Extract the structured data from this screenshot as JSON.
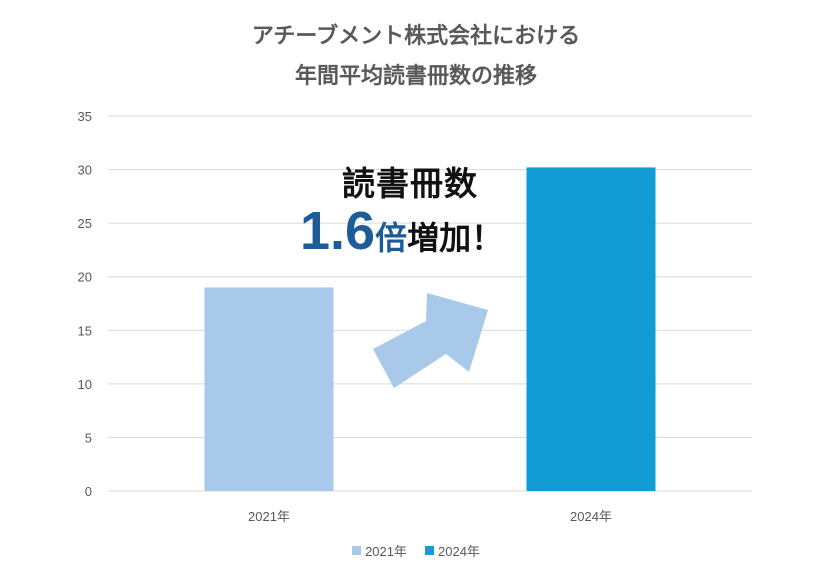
{
  "title": {
    "line1": "アチーブメント株式会社における",
    "line2": "年間平均読書冊数の推移"
  },
  "annotation": {
    "line1": "読書冊数",
    "number": "1.6",
    "unit": "倍",
    "tail": "増加！"
  },
  "colors": {
    "series_2021": "#a9c9ea",
    "series_2024": "#119cd6",
    "arrow": "#a9c9ea",
    "grid": "#d9d9d9",
    "annotation_accent": "#1e5c99"
  },
  "chart_data": {
    "type": "bar",
    "categories": [
      "2021年",
      "2024年"
    ],
    "values": [
      19,
      30.2
    ],
    "series": [
      {
        "name": "2021年",
        "values": [
          19,
          null
        ]
      },
      {
        "name": "2024年",
        "values": [
          null,
          30.2
        ]
      }
    ],
    "ylim": [
      0,
      35
    ],
    "yticks": [
      0,
      5,
      10,
      15,
      20,
      25,
      30,
      35
    ],
    "grid": true,
    "legend": "bottom"
  }
}
